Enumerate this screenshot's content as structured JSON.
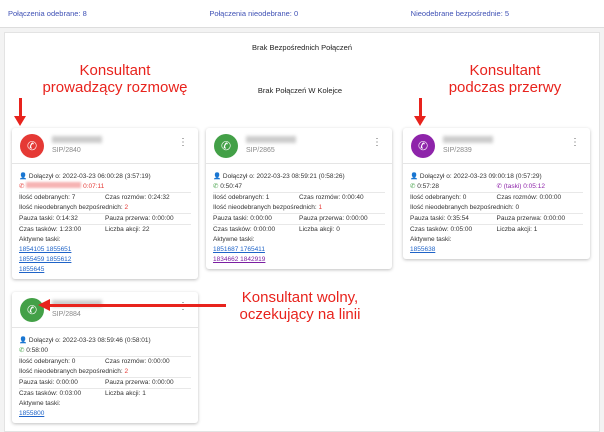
{
  "topbar": {
    "answered": "Połączenia odebrane: 8",
    "missed": "Połączenia nieodebrane: 0",
    "direct_missed": "Nieodebrane bezpośrednie: 5"
  },
  "main": {
    "no_direct": "Brak Bezpośrednich Połączeń",
    "no_queue": "Brak Połączeń W Kolejce"
  },
  "annotations": {
    "talking": "Konsultant\nprowadzący rozmowę",
    "break": "Konsultant\npodczas przerwy",
    "free": "Konsultant wolny,\noczekujący na linii"
  },
  "colors": {
    "talking": "#e53935",
    "free": "#43a047",
    "break": "#8e24aa",
    "annotation": "#e8231d"
  },
  "cards": [
    {
      "sip": "SIP/2840",
      "joined": "Dołączył o: 2022-03-23 06:00:28 (3:57:19)",
      "call_time": "0:07:11",
      "answered": "Ilość odebranych: 7",
      "talk_time": "Czas rozmów: 0:24:32",
      "missed_label": "Ilość nieodebranych bezpośrednich: ",
      "missed": "2",
      "pause_tasks": "Pauza taski: 0:14:32",
      "pause_break": "Pauza przerwa: 0:00:00",
      "task_time": "Czas tasków: 1:23:00",
      "actions": "Liczba akcji: 22",
      "active_label": "Aktywne taski:",
      "tasks": [
        "1854105 1855651",
        "1855459 1855612",
        "1855645"
      ]
    },
    {
      "sip": "SIP/2865",
      "joined": "Dołączył o: 2022-03-23 08:59:21 (0:58:26)",
      "call_time": "0:50:47",
      "answered": "Ilość odebranych: 1",
      "talk_time": "Czas rozmów: 0:00:40",
      "missed_label": "Ilość nieodebranych bezpośrednich: ",
      "missed": "1",
      "pause_tasks": "Pauza taski: 0:00:00",
      "pause_break": "Pauza przerwa: 0:00:00",
      "task_time": "Czas tasków: 0:00:00",
      "actions": "Liczba akcji: 0",
      "active_label": "Aktywne taski:",
      "tasks": [
        "1851687 1765411",
        "1834662 1842919"
      ]
    },
    {
      "sip": "SIP/2839",
      "joined": "Dołączył o: 2022-03-23 09:00:18 (0:57:29)",
      "call_time": "0:57:28",
      "pause_status": "(taski) 0:05:12",
      "answered": "Ilość odebranych: 0",
      "talk_time": "Czas rozmów: 0:00:00",
      "missed_label": "Ilość nieodebranych bezpośrednich: ",
      "missed": "0",
      "pause_tasks": "Pauza taski: 0:35:54",
      "pause_break": "Pauza przerwa: 0:00:00",
      "task_time": "Czas tasków: 0:05:00",
      "actions": "Liczba akcji: 1",
      "active_label": "Aktywne taski:",
      "tasks": [
        "1855638"
      ]
    },
    {
      "sip": "SIP/2884",
      "joined": "Dołączył o: 2022-03-23 08:59:46 (0:58:01)",
      "call_time": "0:58:00",
      "answered": "Ilość odebranych: 0",
      "talk_time": "Czas rozmów: 0:00:00",
      "missed_label": "Ilość nieodebranych bezpośrednich: ",
      "missed": "2",
      "pause_tasks": "Pauza taski: 0:00:00",
      "pause_break": "Pauza przerwa: 0:00:00",
      "task_time": "Czas tasków: 0:03:00",
      "actions": "Liczba akcji: 1",
      "active_label": "Aktywne taski:",
      "tasks": [
        "1855800"
      ]
    }
  ]
}
